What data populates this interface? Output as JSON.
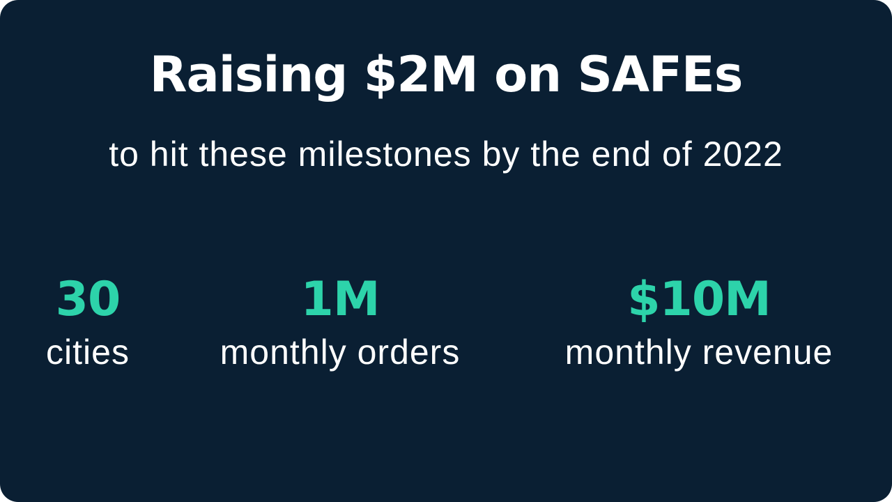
{
  "slide": {
    "title": "Raising $2M on SAFEs",
    "subtitle": "to hit these milestones by the end of 2022",
    "milestones": [
      {
        "value": "30",
        "label": "cities"
      },
      {
        "value": "1M",
        "label": "monthly orders"
      },
      {
        "value": "$10M",
        "label": "monthly revenue"
      }
    ],
    "colors": {
      "background": "#0a1f33",
      "accent": "#2dd3aa",
      "text": "#ffffff"
    }
  }
}
